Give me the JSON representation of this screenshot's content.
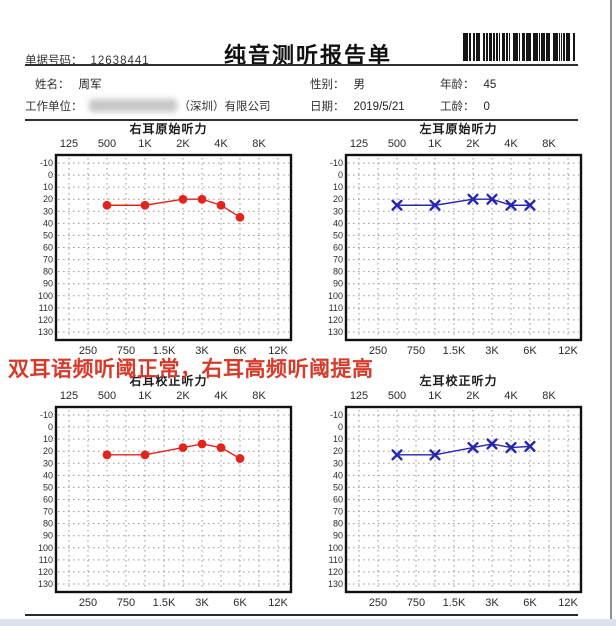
{
  "page": {
    "title": "纯音测听报告单",
    "doc_number_label": "单据号码：",
    "doc_number": "12638441",
    "fields": {
      "name_label": "姓名：",
      "name": "周军",
      "gender_label": "性别：",
      "gender": "男",
      "age_label": "年龄：",
      "age": "45",
      "company_label": "工作单位：",
      "company_visible": "（深圳）有限公司",
      "date_label": "日期：",
      "date": "2019/5/21",
      "work_years_label": "工龄：",
      "work_years": "0"
    },
    "annotation": "双耳语频听阈正常，右耳高频听阈提高",
    "annotation_color": "#d63a2a",
    "barcode": "barcode-image"
  },
  "chart_data": [
    {
      "type": "line",
      "title": "右耳原始听力",
      "x_categories": [
        "125",
        "250",
        "500",
        "750",
        "1K",
        "1.5K",
        "2K",
        "3K",
        "4K",
        "6K",
        "8K",
        "12K"
      ],
      "top_labels": [
        "125",
        "500",
        "1K",
        "2K",
        "4K",
        "8K"
      ],
      "bottom_labels": [
        "250",
        "750",
        "1.5K",
        "3K",
        "6K",
        "12K"
      ],
      "ylim": [
        -10,
        130
      ],
      "y_tick_step": 10,
      "grid": true,
      "series": [
        {
          "name": "右耳",
          "marker": "circle",
          "color": "#e0251c",
          "x": [
            "500",
            "1K",
            "2K",
            "3K",
            "4K",
            "6K"
          ],
          "values": [
            25,
            25,
            20,
            20,
            25,
            35
          ]
        }
      ]
    },
    {
      "type": "line",
      "title": "左耳原始听力",
      "x_categories": [
        "125",
        "250",
        "500",
        "750",
        "1K",
        "1.5K",
        "2K",
        "3K",
        "4K",
        "6K",
        "8K",
        "12K"
      ],
      "top_labels": [
        "125",
        "500",
        "1K",
        "2K",
        "4K",
        "8K"
      ],
      "bottom_labels": [
        "250",
        "750",
        "1.5K",
        "3K",
        "6K",
        "12K"
      ],
      "ylim": [
        -10,
        130
      ],
      "y_tick_step": 10,
      "grid": true,
      "series": [
        {
          "name": "左耳",
          "marker": "x",
          "color": "#2626b0",
          "x": [
            "500",
            "1K",
            "2K",
            "3K",
            "4K",
            "6K"
          ],
          "values": [
            25,
            25,
            20,
            20,
            25,
            25
          ]
        }
      ]
    },
    {
      "type": "line",
      "title": "右耳校正听力",
      "x_categories": [
        "125",
        "250",
        "500",
        "750",
        "1K",
        "1.5K",
        "2K",
        "3K",
        "4K",
        "6K",
        "8K",
        "12K"
      ],
      "top_labels": [
        "125",
        "500",
        "1K",
        "2K",
        "4K",
        "8K"
      ],
      "bottom_labels": [
        "250",
        "750",
        "1.5K",
        "3K",
        "6K",
        "12K"
      ],
      "ylim": [
        -10,
        130
      ],
      "y_tick_step": 10,
      "grid": true,
      "series": [
        {
          "name": "右耳",
          "marker": "circle",
          "color": "#e0251c",
          "x": [
            "500",
            "1K",
            "2K",
            "3K",
            "4K",
            "6K"
          ],
          "values": [
            23,
            23,
            17,
            14,
            17,
            26
          ]
        }
      ]
    },
    {
      "type": "line",
      "title": "左耳校正听力",
      "x_categories": [
        "125",
        "250",
        "500",
        "750",
        "1K",
        "1.5K",
        "2K",
        "3K",
        "4K",
        "6K",
        "8K",
        "12K"
      ],
      "top_labels": [
        "125",
        "500",
        "1K",
        "2K",
        "4K",
        "8K"
      ],
      "bottom_labels": [
        "250",
        "750",
        "1.5K",
        "3K",
        "6K",
        "12K"
      ],
      "ylim": [
        -10,
        130
      ],
      "y_tick_step": 10,
      "grid": true,
      "series": [
        {
          "name": "左耳",
          "marker": "x",
          "color": "#2626b0",
          "x": [
            "500",
            "1K",
            "2K",
            "3K",
            "4K",
            "6K"
          ],
          "values": [
            23,
            23,
            17,
            14,
            17,
            16
          ]
        }
      ]
    }
  ]
}
